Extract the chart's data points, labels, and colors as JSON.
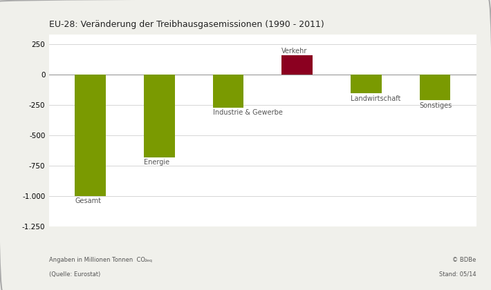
{
  "title": "EU-28: Veränderung der Treibhausgasemissionen (1990 - 2011)",
  "categories": [
    "Gesamt",
    "Energie",
    "Industrie & Gewerbe",
    "Verkehr",
    "Landwirtschaft",
    "Sonstiges"
  ],
  "values": [
    -1000,
    -680,
    -270,
    160,
    -155,
    -210
  ],
  "bar_colors": [
    "#7a9a01",
    "#7a9a01",
    "#7a9a01",
    "#8b0020",
    "#7a9a01",
    "#7a9a01"
  ],
  "ylim": [
    -1250,
    330
  ],
  "yticks": [
    -1250,
    -1000,
    -750,
    -500,
    -250,
    0,
    250
  ],
  "background_color": "#f0f0eb",
  "plot_bg_color": "#ffffff",
  "footnote_line1": "Angaben in Millionen Tonnen  CO",
  "footnote_sub": "2eq",
  "footnote_line2": "(Quelle: Eurostat)",
  "credit_line1": "© BDBe",
  "credit_line2": "Stand: 05/14",
  "title_fontsize": 9,
  "label_fontsize": 7,
  "tick_fontsize": 7.5,
  "bar_width": 0.45,
  "grid_color": "#d0d0d0",
  "x_positions": [
    0,
    1,
    2,
    3,
    4,
    5
  ]
}
